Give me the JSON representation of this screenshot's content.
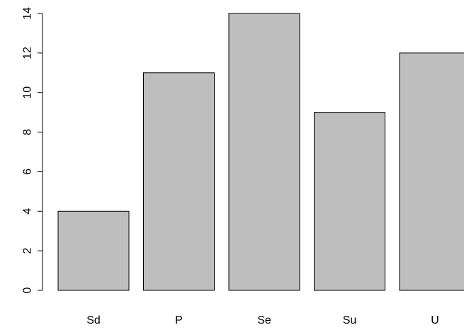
{
  "chart_data": {
    "type": "bar",
    "categories": [
      "Sd",
      "P",
      "Se",
      "Su",
      "U"
    ],
    "values": [
      4,
      11,
      14,
      9,
      12
    ],
    "title": "",
    "xlabel": "",
    "ylabel": "",
    "ylim": [
      0,
      14
    ],
    "yticks": [
      "0",
      "2",
      "4",
      "6",
      "8",
      "10",
      "12",
      "14"
    ],
    "grid": false,
    "bar_color": "#bebebe",
    "bar_border_color": "#000000"
  }
}
